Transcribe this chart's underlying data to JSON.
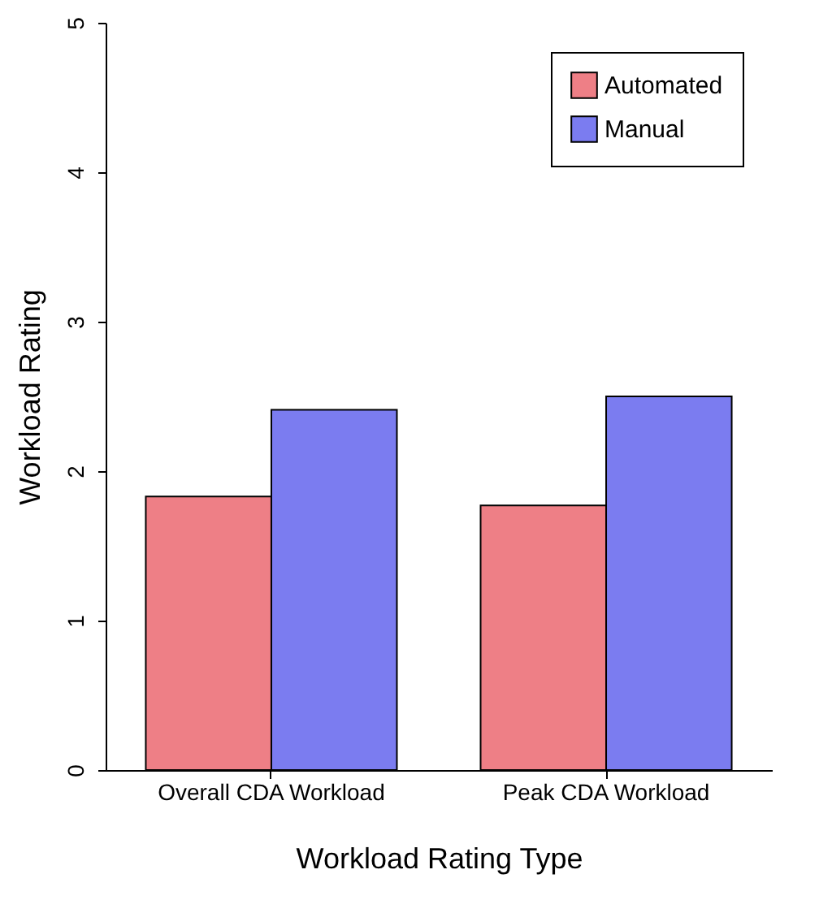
{
  "chart_data": {
    "type": "bar",
    "xlabel": "Workload Rating Type",
    "ylabel": "Workload Rating",
    "categories": [
      "Overall CDA Workload",
      "Peak CDA Workload"
    ],
    "series": [
      {
        "name": "Automated",
        "color": "#ee7f86",
        "values": [
          1.83,
          1.77
        ]
      },
      {
        "name": "Manual",
        "color": "#7b7cf0",
        "values": [
          2.41,
          2.5
        ]
      }
    ],
    "ylim": [
      0,
      5
    ],
    "yticks": [
      0,
      1,
      2,
      3,
      4,
      5
    ],
    "grid": false,
    "legend": "top right"
  }
}
